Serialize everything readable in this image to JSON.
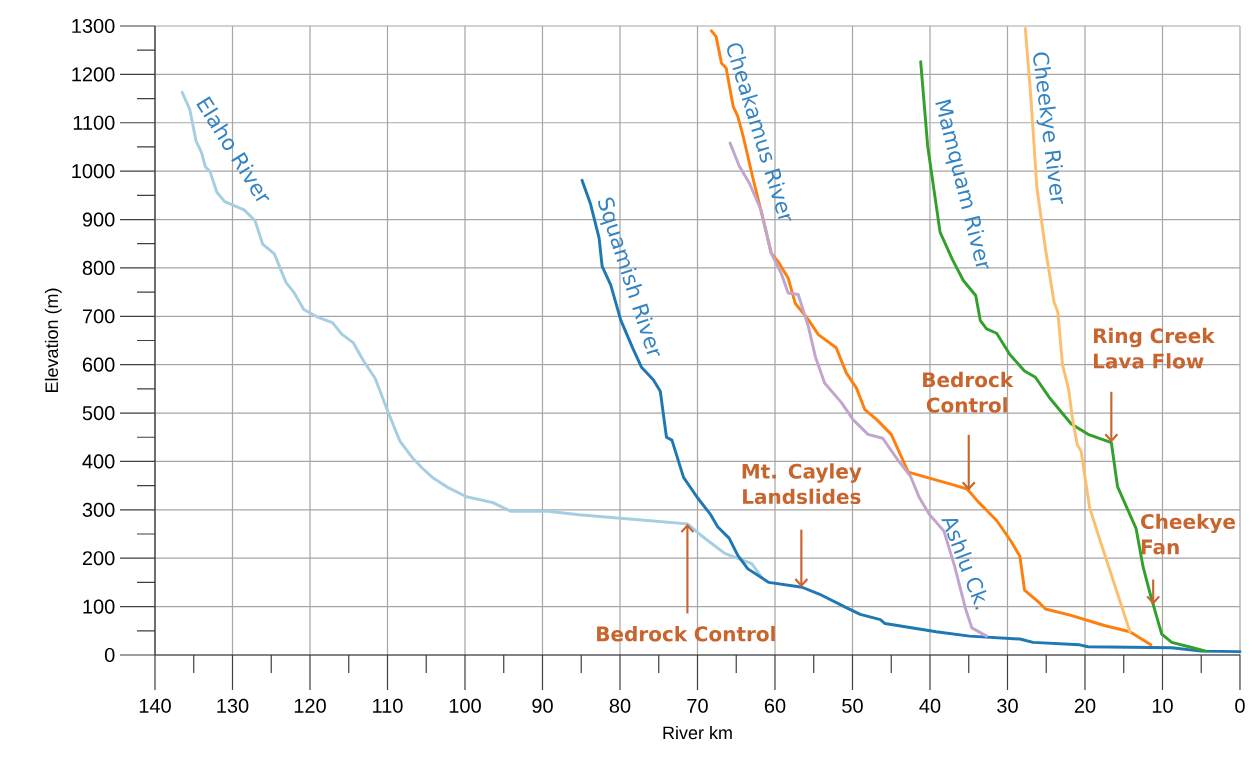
{
  "chart_data": {
    "type": "line",
    "xlabel": "River km",
    "ylabel": "Elevation (m)",
    "xlim": [
      140,
      0
    ],
    "ylim": [
      0,
      1300
    ],
    "xticks": [
      140,
      130,
      120,
      110,
      100,
      90,
      80,
      70,
      60,
      50,
      40,
      30,
      20,
      10,
      0
    ],
    "yticks": [
      0,
      100,
      200,
      300,
      400,
      500,
      600,
      700,
      800,
      900,
      1000,
      1100,
      1200,
      1300
    ],
    "grid": true,
    "marker": "none",
    "line_style": "solid",
    "series": [
      {
        "name": "Elaho River",
        "color": "#a6cee3",
        "x": [
          136.5,
          135.5,
          134.7,
          134.0,
          133.5,
          132.9,
          132.0,
          131.0,
          128.5,
          127.1,
          126.1,
          124.6,
          123.1,
          122.1,
          120.8,
          119.1,
          117.1,
          115.9,
          114.4,
          113.1,
          111.6,
          109.9,
          108.4,
          106.7,
          105.5,
          104.2,
          102.3,
          99.8,
          96.4,
          94.1,
          89.3,
          85.3,
          78.8,
          71.3,
          69.6,
          66.5,
          63.0,
          61.7
        ],
        "values": [
          1163,
          1127,
          1062,
          1039,
          1009,
          999,
          956,
          937,
          920,
          898,
          849,
          829,
          770,
          750,
          714,
          699,
          687,
          663,
          645,
          608,
          572,
          501,
          442,
          406,
          386,
          367,
          347,
          327,
          315,
          297,
          297,
          290,
          281,
          271,
          248,
          210,
          189,
          160
        ]
      },
      {
        "name": "Squamish River",
        "color": "#1f78b4",
        "x": [
          84.9,
          83.8,
          82.7,
          82.3,
          81.2,
          79.9,
          78.3,
          77.2,
          75.7,
          74.8,
          74.0,
          73.3,
          71.8,
          70.0,
          68.3,
          67.4,
          65.9,
          64.8,
          63.5,
          60.8,
          56.5,
          54.3,
          50.8,
          49.0,
          46.4,
          45.8,
          39.2,
          34.9,
          28.4,
          26.7,
          20.7,
          19.6,
          8.8,
          5.0,
          0
        ],
        "values": [
          981,
          932,
          862,
          803,
          765,
          692,
          632,
          594,
          569,
          545,
          450,
          444,
          367,
          325,
          290,
          265,
          241,
          206,
          178,
          150,
          140,
          126,
          98,
          84,
          73,
          65,
          48,
          39,
          33,
          26,
          21,
          17,
          15,
          8,
          7
        ]
      },
      {
        "name": "Cheakamus River",
        "color": "#ff7f0e",
        "x": [
          68.2,
          67.6,
          66.9,
          66.3,
          65.4,
          64.8,
          64.1,
          62.9,
          62.0,
          61.1,
          60.5,
          59.6,
          58.3,
          57.4,
          55.7,
          54.4,
          52.1,
          50.8,
          49.5,
          48.4,
          46.9,
          45.0,
          42.8,
          37.1,
          35.2,
          33.8,
          31.4,
          29.5,
          28.4,
          27.8,
          25.9,
          25.1,
          21.8,
          17.5,
          14.2,
          11.5
        ],
        "values": [
          1290,
          1278,
          1223,
          1213,
          1134,
          1113,
          1072,
          989,
          931,
          872,
          831,
          813,
          779,
          727,
          693,
          662,
          635,
          583,
          552,
          507,
          487,
          456,
          378,
          352,
          343,
          317,
          278,
          234,
          204,
          134,
          108,
          95,
          82,
          61,
          48,
          21
        ]
      },
      {
        "name": "Ashlu Ck.",
        "color": "#c2a5cf",
        "x": [
          65.8,
          64.6,
          63.3,
          61.8,
          60.5,
          59.2,
          58.3,
          57.0,
          55.7,
          54.8,
          53.6,
          51.4,
          49.9,
          48.0,
          46.1,
          44.2,
          42.5,
          41.4,
          40.1,
          38.2,
          36.8,
          35.4,
          34.6,
          32.7
        ],
        "values": [
          1058,
          1010,
          975,
          920,
          831,
          789,
          748,
          745,
          679,
          617,
          562,
          521,
          486,
          456,
          448,
          404,
          369,
          326,
          291,
          256,
          182,
          95,
          56,
          39
        ]
      },
      {
        "name": "Mamquam River",
        "color": "#33a02c",
        "x": [
          41.2,
          40.3,
          38.7,
          37.1,
          35.7,
          34.1,
          33.5,
          32.7,
          31.4,
          29.7,
          27.8,
          26.4,
          24.5,
          21.8,
          19.6,
          16.6,
          15.8,
          13.4,
          12.5,
          11.5,
          10.1,
          8.8,
          6.6,
          4.4
        ],
        "values": [
          1226,
          1052,
          874,
          817,
          774,
          743,
          691,
          674,
          665,
          621,
          587,
          574,
          530,
          478,
          456,
          439,
          348,
          261,
          182,
          121,
          43,
          26,
          17,
          8
        ]
      },
      {
        "name": "Cheekye River",
        "color": "#fdbf6f",
        "x": [
          27.7,
          27.0,
          26.2,
          25.1,
          24.0,
          23.5,
          22.9,
          22.1,
          21.6,
          21.0,
          20.5,
          19.4,
          18.0,
          16.4,
          14.2
        ],
        "values": [
          1295,
          1156,
          965,
          839,
          730,
          708,
          600,
          548,
          487,
          435,
          421,
          304,
          234,
          156,
          48
        ]
      }
    ],
    "annotations": [
      {
        "text": "Bedrock Control",
        "x": 71.3,
        "y": 271
      },
      {
        "text": "Mt. Cayley Landslides",
        "x": 56.6,
        "y": 140
      },
      {
        "text": "Bedrock Control",
        "x": 35.0,
        "y": 340
      },
      {
        "text": "Ring Creek Lava Flow",
        "x": 16.6,
        "y": 439
      },
      {
        "text": "Cheekye Fan",
        "x": 11.2,
        "y": 104
      }
    ]
  }
}
